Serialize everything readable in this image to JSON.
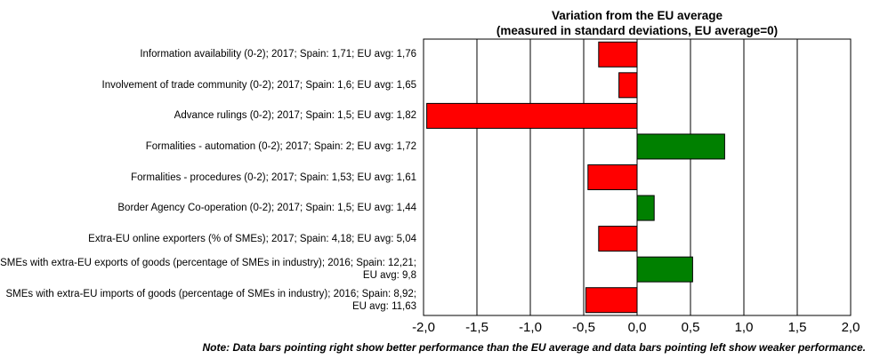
{
  "chart_data": {
    "type": "bar",
    "orientation": "horizontal",
    "title_line1": "Variation from the EU average",
    "title_line2": "(measured in standard deviations, EU average=0)",
    "categories": [
      "Information availability (0-2); 2017; Spain: 1,71; EU avg: 1,76",
      "Involvement of trade community (0-2); 2017; Spain: 1,6; EU avg: 1,65",
      "Advance rulings (0-2); 2017; Spain: 1,5; EU avg: 1,82",
      "Formalities - automation (0-2); 2017; Spain: 2; EU avg: 1,72",
      "Formalities - procedures (0-2); 2017; Spain: 1,53; EU avg: 1,61",
      "Border Agency Co-operation (0-2); 2017; Spain: 1,5; EU avg: 1,44",
      "Extra-EU online exporters (% of SMEs); 2017; Spain: 4,18; EU avg: 5,04",
      "SMEs with extra-EU exports of goods (percentage of SMEs in industry); 2016; Spain: 12,21; EU avg: 9,8",
      "SMEs with extra-EU imports of goods (percentage of SMEs in industry); 2016; Spain: 8,92; EU avg: 11,63"
    ],
    "values": [
      -0.36,
      -0.17,
      -1.97,
      0.82,
      -0.46,
      0.16,
      -0.36,
      0.52,
      -0.48
    ],
    "xlim": [
      -2.0,
      2.0
    ],
    "xticks": [
      "-2,0",
      "-1,5",
      "-1,0",
      "-0,5",
      "0,0",
      "0,5",
      "1,0",
      "1,5",
      "2,0"
    ],
    "tick_values": [
      -2.0,
      -1.5,
      -1.0,
      -0.5,
      0.0,
      0.5,
      1.0,
      1.5,
      2.0
    ],
    "colors": {
      "negative": "#ff0000",
      "positive": "#008000",
      "grid": "#000000"
    },
    "grid": true,
    "note": "Note: Data bars pointing right show better performance than the EU average and data bars pointing left show weaker performance."
  }
}
